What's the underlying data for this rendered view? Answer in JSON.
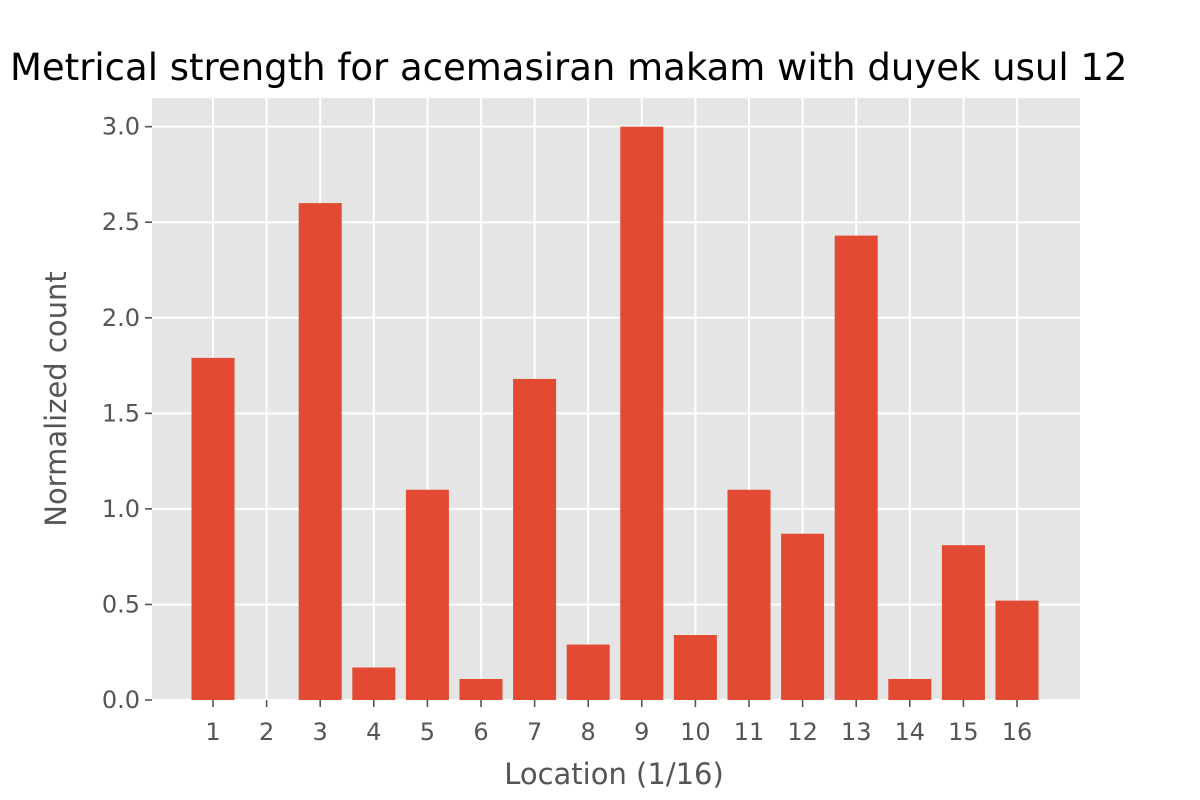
{
  "chart_data": {
    "type": "bar",
    "title": "Metrical strength for acemasiran makam with duyek usul 12",
    "xlabel": "Location (1/16)",
    "ylabel": "Normalized count",
    "categories": [
      "1",
      "2",
      "3",
      "4",
      "5",
      "6",
      "7",
      "8",
      "9",
      "10",
      "11",
      "12",
      "13",
      "14",
      "15",
      "16"
    ],
    "values": [
      1.79,
      0.0,
      2.6,
      0.17,
      1.1,
      0.11,
      1.68,
      0.29,
      3.0,
      0.34,
      1.1,
      0.87,
      2.43,
      0.11,
      0.81,
      0.52
    ],
    "ylim": [
      0,
      3.15
    ],
    "yticks": [
      "0.0",
      "0.5",
      "1.0",
      "1.5",
      "2.0",
      "2.5",
      "3.0"
    ],
    "grid": true,
    "colors": {
      "bar": "#E24A33",
      "background": "#E5E5E5",
      "grid": "#FFFFFF"
    }
  }
}
